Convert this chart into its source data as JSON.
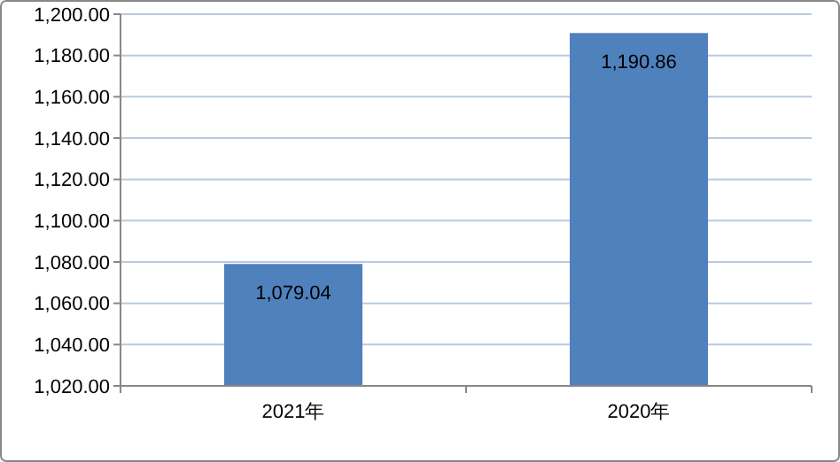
{
  "chart_data": {
    "type": "bar",
    "categories": [
      "2021年",
      "2020年"
    ],
    "values": [
      1079.04,
      1190.86
    ],
    "color": "#4f81bd",
    "value_labels": [
      "1,079.04",
      "1,190.86"
    ],
    "ylim": [
      1020,
      1200
    ],
    "yticks": [
      {
        "value": 1020,
        "label": "1,020.00"
      },
      {
        "value": 1040,
        "label": "1,040.00"
      },
      {
        "value": 1060,
        "label": "1,060.00"
      },
      {
        "value": 1080,
        "label": "1,080.00"
      },
      {
        "value": 1100,
        "label": "1,100.00"
      },
      {
        "value": 1120,
        "label": "1,120.00"
      },
      {
        "value": 1140,
        "label": "1,140.00"
      },
      {
        "value": 1160,
        "label": "1,160.00"
      },
      {
        "value": 1180,
        "label": "1,180.00"
      },
      {
        "value": 1200,
        "label": "1,200.00"
      }
    ],
    "grid": "y"
  }
}
